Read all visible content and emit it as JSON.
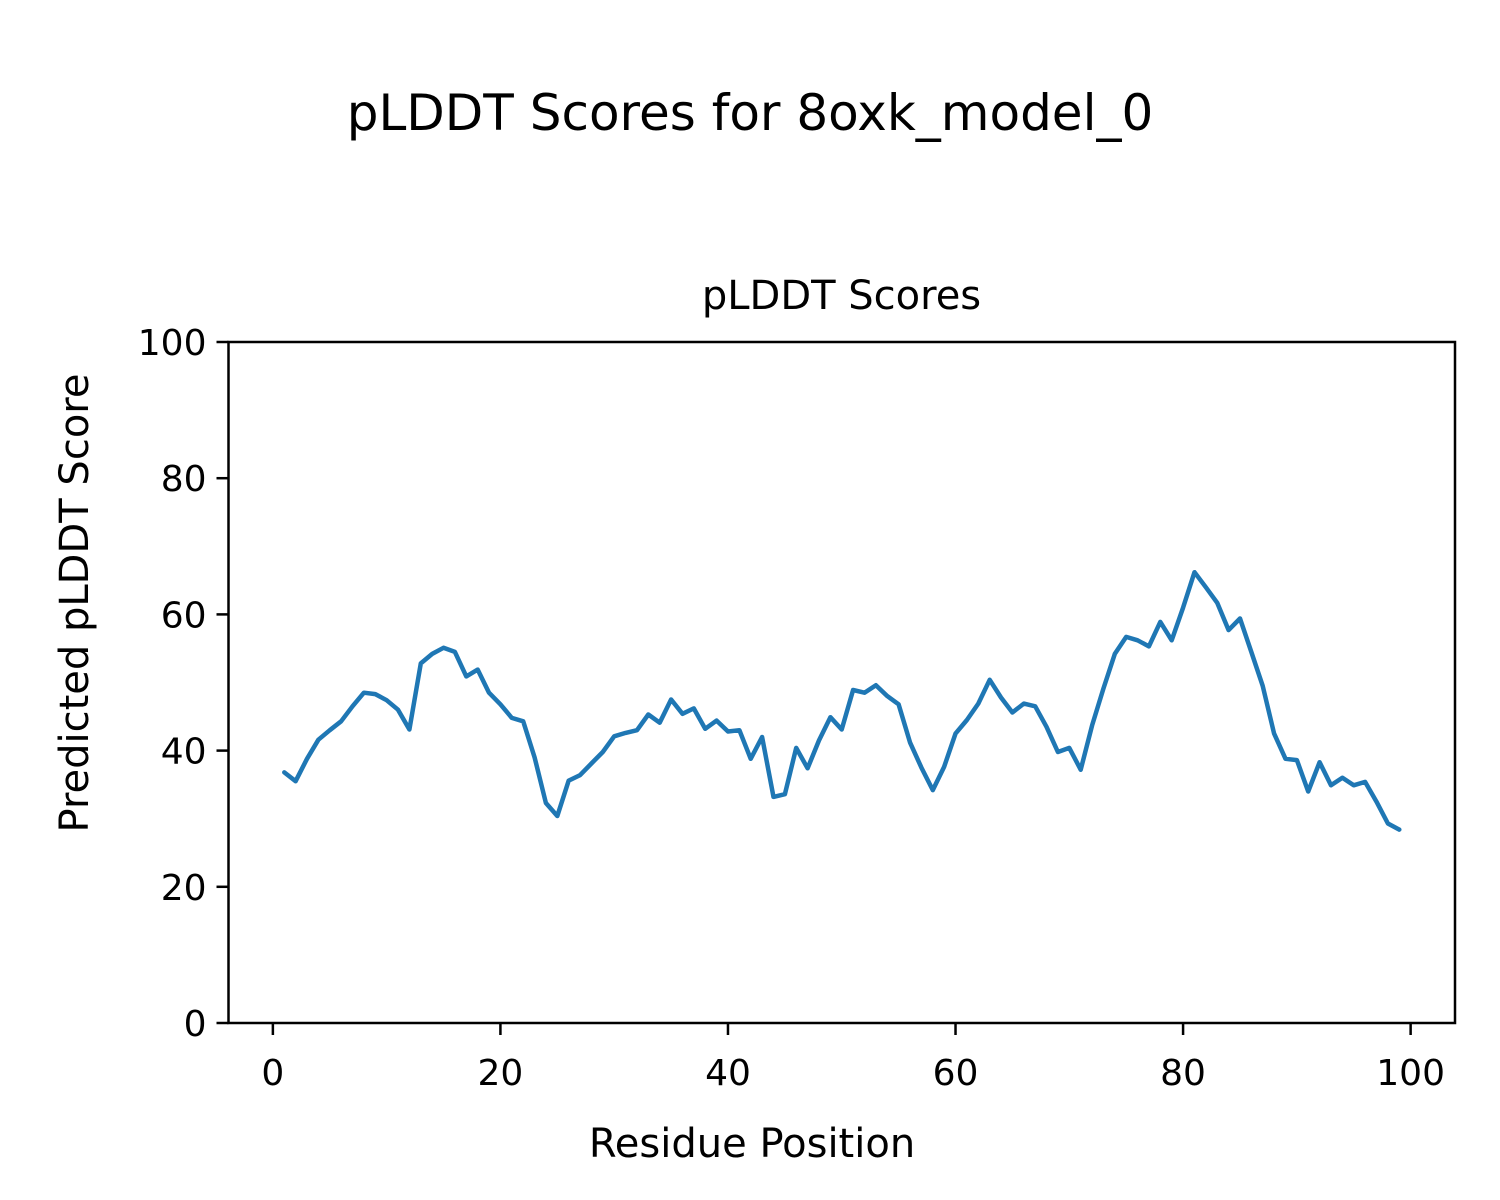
{
  "figure": {
    "suptitle": "pLDDT Scores for 8oxk_model_0",
    "axes_title": "pLDDT Scores",
    "xlabel": "Residue Position",
    "ylabel": "Predicted pLDDT Score"
  },
  "chart_data": {
    "type": "line",
    "title": "pLDDT Scores",
    "suptitle": "pLDDT Scores for 8oxk_model_0",
    "xlabel": "Residue Position",
    "ylabel": "Predicted pLDDT Score",
    "grid": false,
    "legend": null,
    "line_color": "#1f77b4",
    "axis_color": "#000000",
    "background_color": "#ffffff",
    "xlim": [
      -3.9,
      103.9
    ],
    "ylim": [
      0,
      100
    ],
    "xticks": [
      0,
      20,
      40,
      60,
      80,
      100
    ],
    "yticks": [
      0,
      20,
      40,
      60,
      80,
      100
    ],
    "x": [
      1,
      2,
      3,
      4,
      5,
      6,
      7,
      8,
      9,
      10,
      11,
      12,
      13,
      14,
      15,
      16,
      17,
      18,
      19,
      20,
      21,
      22,
      23,
      24,
      25,
      26,
      27,
      28,
      29,
      30,
      31,
      32,
      33,
      34,
      35,
      36,
      37,
      38,
      39,
      40,
      41,
      42,
      43,
      44,
      45,
      46,
      47,
      48,
      49,
      50,
      51,
      52,
      53,
      54,
      55,
      56,
      57,
      58,
      59,
      60,
      61,
      62,
      63,
      64,
      65,
      66,
      67,
      68,
      69,
      70,
      71,
      72,
      73,
      74,
      75,
      76,
      77,
      78,
      79,
      80,
      81,
      82,
      83,
      84,
      85,
      86,
      87,
      88,
      89,
      90,
      91,
      92,
      93,
      94,
      95,
      96,
      97,
      98,
      99
    ],
    "y": [
      36.8,
      35.5,
      38.8,
      41.6,
      43.0,
      44.3,
      46.5,
      48.5,
      48.3,
      47.4,
      46.0,
      43.1,
      52.8,
      54.2,
      55.1,
      54.5,
      50.9,
      51.9,
      48.5,
      46.8,
      44.8,
      44.3,
      39.0,
      32.3,
      30.4,
      35.6,
      36.4,
      38.1,
      39.8,
      42.1,
      42.6,
      43.0,
      45.3,
      44.1,
      47.5,
      45.4,
      46.2,
      43.2,
      44.4,
      42.8,
      43.0,
      38.8,
      42.0,
      33.2,
      33.6,
      40.4,
      37.4,
      41.5,
      44.9,
      43.1,
      48.9,
      48.5,
      49.6,
      48.0,
      46.8,
      41.2,
      37.5,
      34.2,
      37.6,
      42.5,
      44.5,
      46.9,
      50.4,
      47.8,
      45.6,
      46.9,
      46.5,
      43.5,
      39.8,
      40.4,
      37.2,
      43.7,
      49.1,
      54.2,
      56.7,
      56.2,
      55.3,
      58.9,
      56.2,
      61.0,
      66.2,
      64.0,
      61.7,
      57.7,
      59.4,
      54.5,
      49.5,
      42.5,
      38.8,
      38.6,
      34.0,
      38.3,
      34.9,
      36.0,
      34.9,
      35.4,
      32.5,
      29.3,
      28.4
    ]
  }
}
